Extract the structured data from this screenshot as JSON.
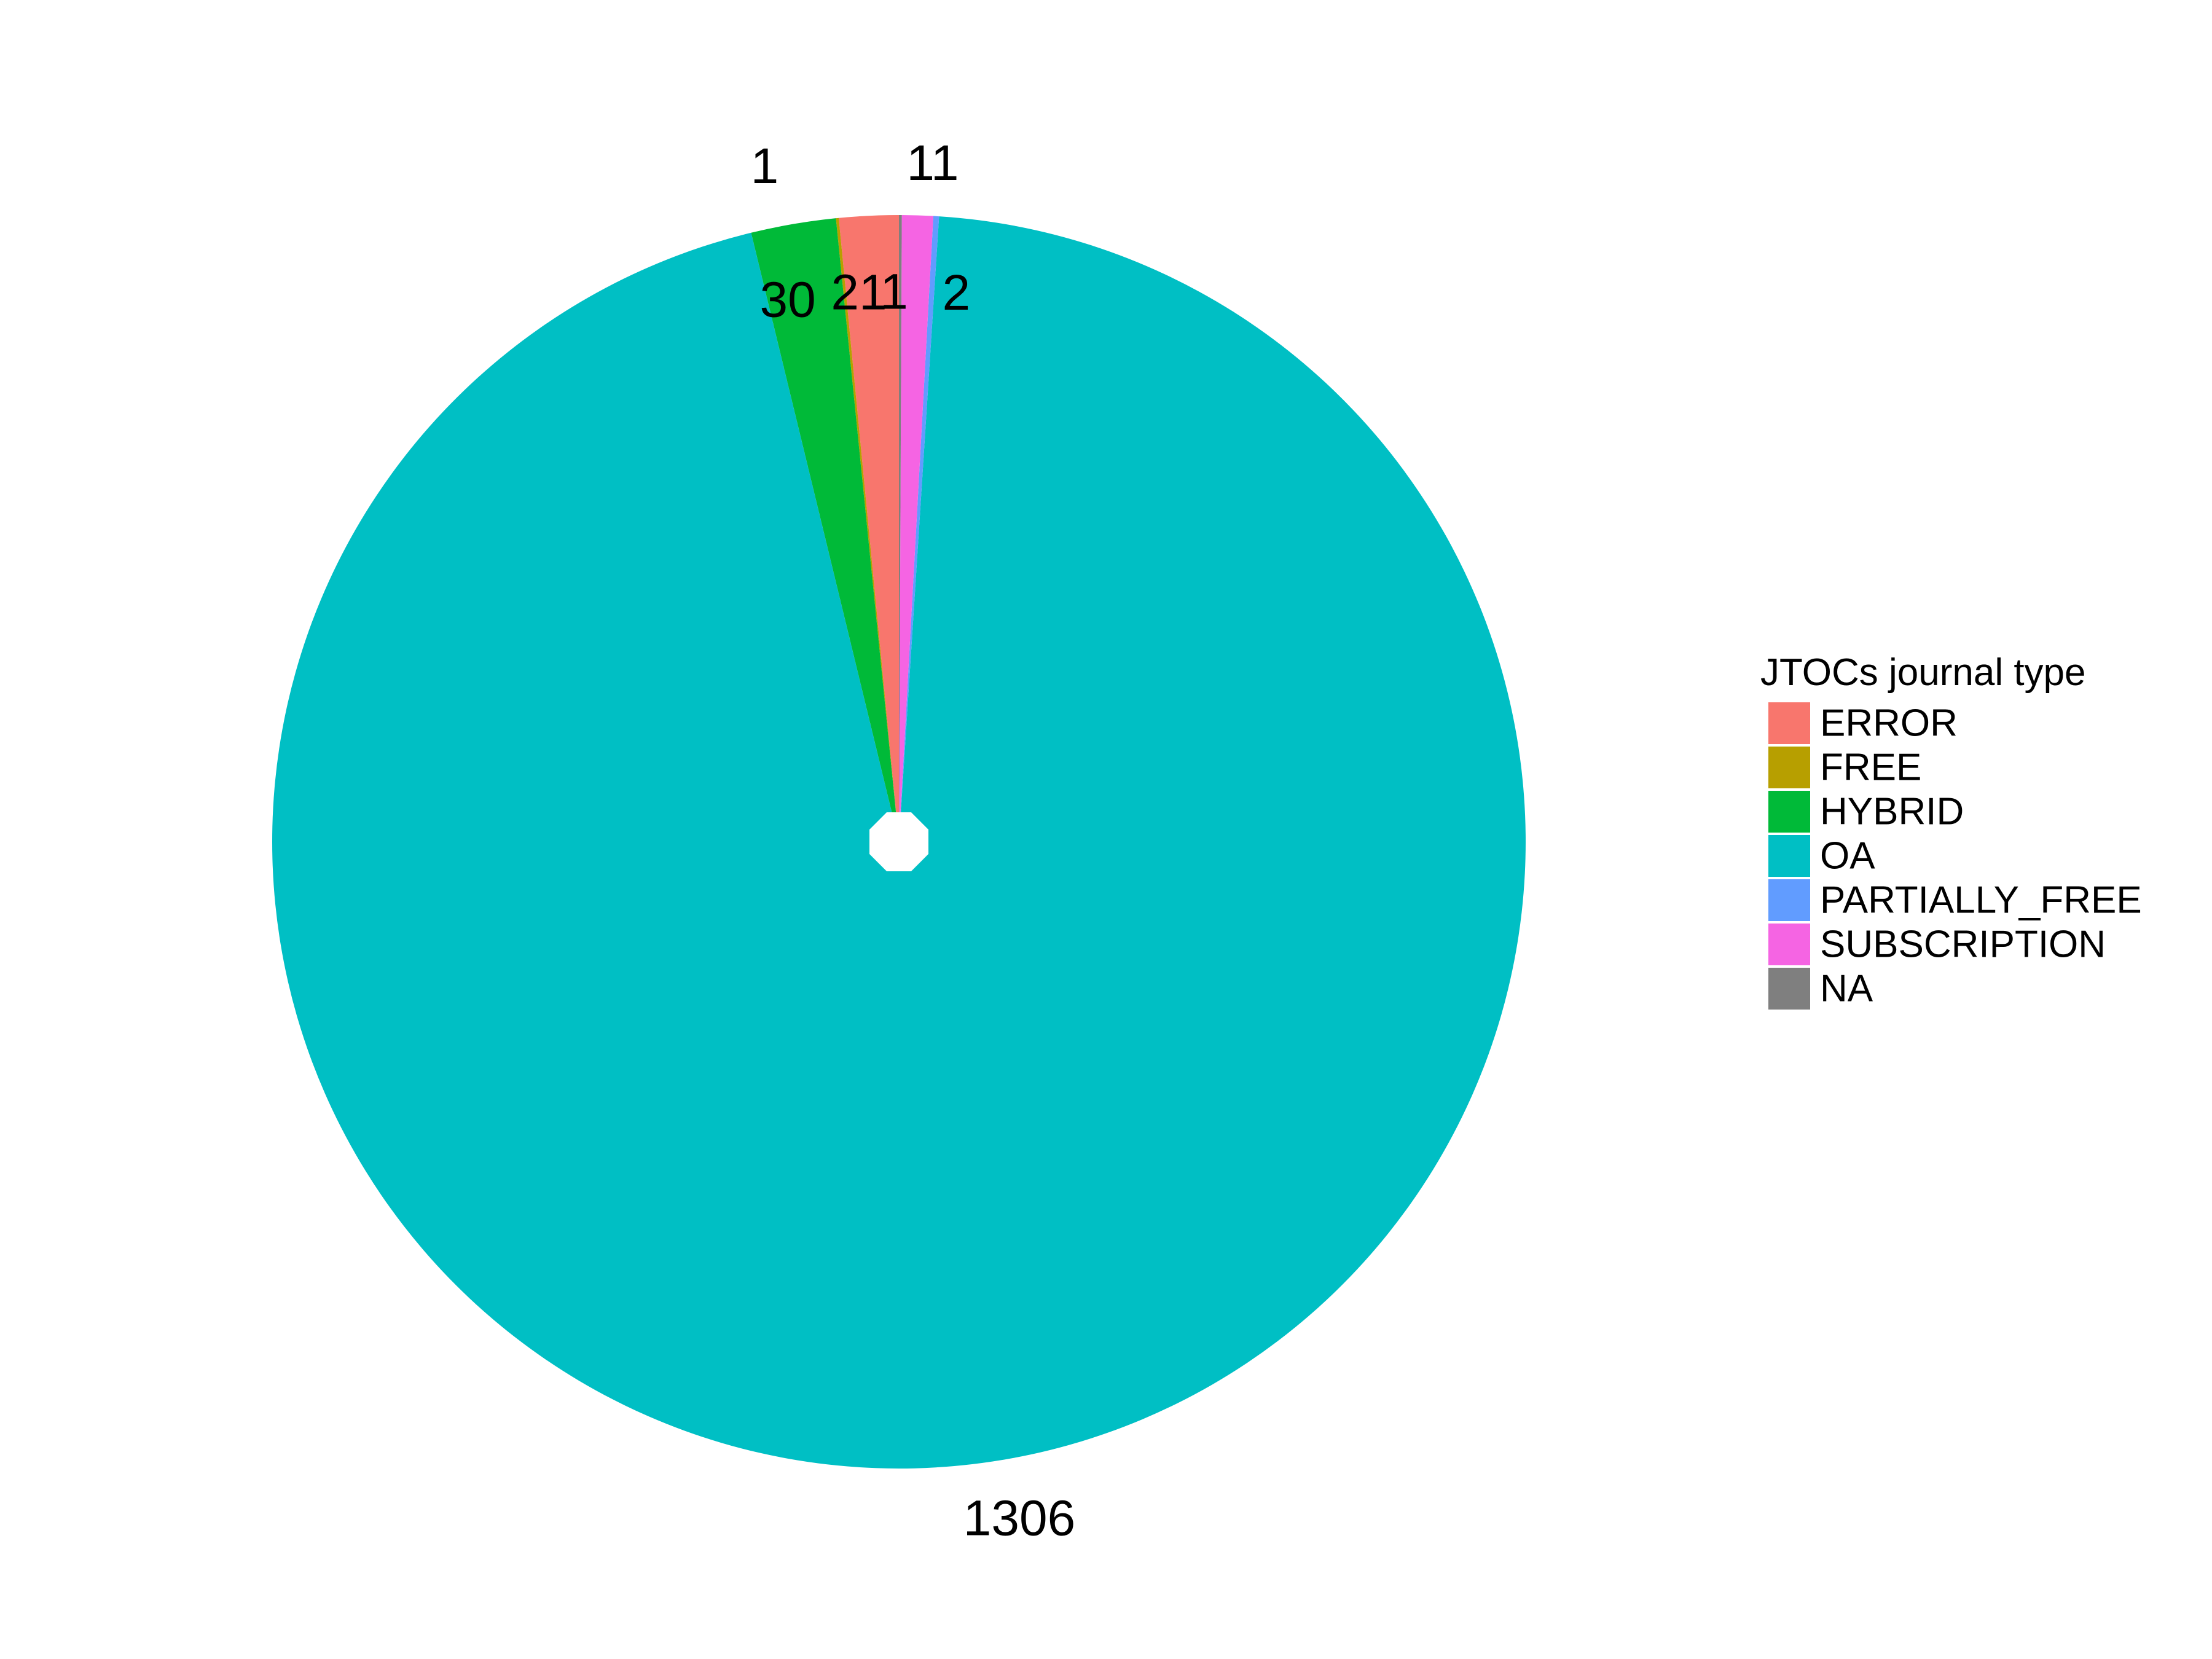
{
  "chart_data": {
    "type": "pie",
    "title": "",
    "start": "top",
    "direction": "counterclockwise",
    "legend": {
      "title": "JTOCs journal type",
      "placement": "right"
    },
    "series": [
      {
        "name": "ERROR",
        "value": 21,
        "color": "#F8766D"
      },
      {
        "name": "FREE",
        "value": 1,
        "color": "#B79F00"
      },
      {
        "name": "HYBRID",
        "value": 30,
        "color": "#00BA38"
      },
      {
        "name": "OA",
        "value": 1306,
        "color": "#00BFC4"
      },
      {
        "name": "PARTIALLY_FREE",
        "value": 2,
        "color": "#619CFF"
      },
      {
        "name": "SUBSCRIPTION",
        "value": 11,
        "color": "#F564E3"
      },
      {
        "name": "NA",
        "value": 1,
        "color": "#7F7F7F"
      }
    ],
    "slice_labels": [
      {
        "series": "OA",
        "text": "1306",
        "position": "outer"
      },
      {
        "series": "HYBRID",
        "text": "30",
        "position": "inner"
      },
      {
        "series": "ERROR",
        "text": "21",
        "position": "inner"
      },
      {
        "series": "FREE",
        "text": "1",
        "position": "outer"
      },
      {
        "series": "PARTIALLY_FREE",
        "text": "2",
        "position": "inner"
      },
      {
        "series": "SUBSCRIPTION",
        "text": "11",
        "position": "outer"
      },
      {
        "series": "NA",
        "text": "1",
        "position": "inner"
      }
    ]
  }
}
